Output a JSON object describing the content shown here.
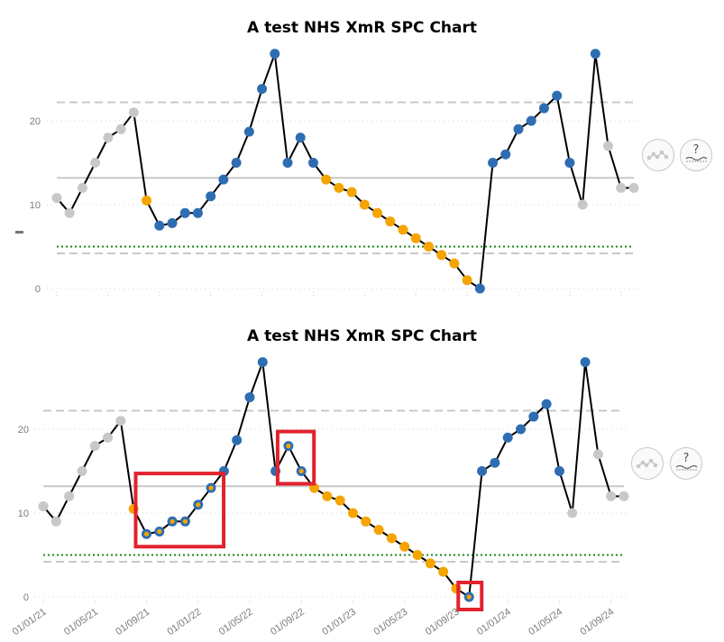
{
  "chart_data": [
    {
      "type": "line",
      "title": "A test NHS XmR SPC Chart",
      "ylim": [
        0,
        30
      ],
      "y_ticks": [
        0,
        10,
        20
      ],
      "x": [
        "01/01/21",
        "01/02/21",
        "01/03/21",
        "01/04/21",
        "01/05/21",
        "01/06/21",
        "01/07/21",
        "01/08/21",
        "01/09/21",
        "01/10/21",
        "01/11/21",
        "01/12/21",
        "01/01/22",
        "01/02/22",
        "01/03/22",
        "01/04/22",
        "01/05/22",
        "01/06/22",
        "01/07/22",
        "01/08/22",
        "01/09/22",
        "01/10/22",
        "01/11/22",
        "01/12/22",
        "01/01/23",
        "01/02/23",
        "01/03/23",
        "01/04/23",
        "01/05/23",
        "01/06/23",
        "01/07/23",
        "01/08/23",
        "01/09/23",
        "01/10/23",
        "01/11/23",
        "01/12/23",
        "01/01/24",
        "01/02/24",
        "01/03/24",
        "01/04/24",
        "01/05/24",
        "01/06/24",
        "01/07/24",
        "01/08/24",
        "01/09/24",
        "01/10/24"
      ],
      "x_tick_labels_visible": false,
      "values": [
        10.8,
        9,
        12,
        15,
        18,
        19,
        21,
        10.5,
        7.5,
        7.8,
        9,
        9,
        11,
        13,
        15,
        18.7,
        23.8,
        28,
        15,
        18,
        15,
        13,
        12,
        11.5,
        10,
        9,
        8,
        7,
        6,
        5,
        4,
        3,
        1,
        0,
        15,
        16,
        19,
        20,
        21.5,
        23,
        15,
        10,
        28,
        17,
        12,
        12
      ],
      "point_colors": [
        "grey",
        "grey",
        "grey",
        "grey",
        "grey",
        "grey",
        "grey",
        "orange",
        "blue",
        "blue",
        "blue",
        "blue",
        "blue",
        "blue",
        "blue",
        "blue",
        "blue",
        "blue",
        "blue",
        "blue",
        "blue",
        "orange",
        "orange",
        "orange",
        "orange",
        "orange",
        "orange",
        "orange",
        "orange",
        "orange",
        "orange",
        "orange",
        "orange",
        "blue",
        "blue",
        "blue",
        "blue",
        "blue",
        "blue",
        "blue",
        "blue",
        "grey",
        "blue",
        "grey",
        "grey",
        "grey"
      ],
      "reference_lines": {
        "mean": 13.2,
        "upper_process_limit": 22.2,
        "lower_process_limit": 4.2,
        "target": 5
      },
      "grid": true,
      "legend": "none"
    },
    {
      "type": "line",
      "title": "A test NHS XmR SPC Chart",
      "ylim": [
        0,
        30
      ],
      "y_ticks": [
        0,
        10,
        20
      ],
      "x": [
        "01/01/21",
        "01/02/21",
        "01/03/21",
        "01/04/21",
        "01/05/21",
        "01/06/21",
        "01/07/21",
        "01/08/21",
        "01/09/21",
        "01/10/21",
        "01/11/21",
        "01/12/21",
        "01/01/22",
        "01/02/22",
        "01/03/22",
        "01/04/22",
        "01/05/22",
        "01/06/22",
        "01/07/22",
        "01/08/22",
        "01/09/22",
        "01/10/22",
        "01/11/22",
        "01/12/22",
        "01/01/23",
        "01/02/23",
        "01/03/23",
        "01/04/23",
        "01/05/23",
        "01/06/23",
        "01/07/23",
        "01/08/23",
        "01/09/23",
        "01/10/23",
        "01/11/23",
        "01/12/23",
        "01/01/24",
        "01/02/24",
        "01/03/24",
        "01/04/24",
        "01/05/24",
        "01/06/24",
        "01/07/24",
        "01/08/24",
        "01/09/24",
        "01/10/24"
      ],
      "x_tick_labels": [
        "01/01/21",
        "01/05/21",
        "01/09/21",
        "01/01/22",
        "01/05/22",
        "01/09/22",
        "01/01/23",
        "01/05/23",
        "01/09/23",
        "01/01/24",
        "01/05/24",
        "01/09/24"
      ],
      "values": [
        10.8,
        9,
        12,
        15,
        18,
        19,
        21,
        10.5,
        7.5,
        7.8,
        9,
        9,
        11,
        13,
        15,
        18.7,
        23.8,
        28,
        15,
        18,
        15,
        13,
        12,
        11.5,
        10,
        9,
        8,
        7,
        6,
        5,
        4,
        3,
        1,
        0,
        15,
        16,
        19,
        20,
        21.5,
        23,
        15,
        10,
        28,
        17,
        12,
        12
      ],
      "point_colors": [
        "grey",
        "grey",
        "grey",
        "grey",
        "grey",
        "grey",
        "grey",
        "orange",
        "blue",
        "blue",
        "blue",
        "blue",
        "blue",
        "blue",
        "blue",
        "blue",
        "blue",
        "blue",
        "blue",
        "blue",
        "blue",
        "orange",
        "orange",
        "orange",
        "orange",
        "orange",
        "orange",
        "orange",
        "orange",
        "orange",
        "orange",
        "orange",
        "orange",
        "blue",
        "blue",
        "blue",
        "blue",
        "blue",
        "blue",
        "blue",
        "blue",
        "grey",
        "blue",
        "grey",
        "grey",
        "grey"
      ],
      "outlined_points": [
        8,
        9,
        10,
        11,
        12,
        13,
        19,
        20,
        33
      ],
      "highlight_boxes": [
        [
          8,
          13
        ],
        [
          19,
          20
        ],
        [
          33,
          33
        ]
      ],
      "reference_lines": {
        "mean": 13.2,
        "upper_process_limit": 22.2,
        "lower_process_limit": 4.2,
        "target": 5
      },
      "grid": true,
      "legend": "none"
    }
  ],
  "colors": {
    "grey_point": "#c8c8c8",
    "orange_point": "#f5a400",
    "blue_point": "#2f6db3",
    "line": "#000000",
    "mean_line": "#c8c8c8",
    "limit_line": "#c8c8c8",
    "target_line": "#1a8a1a",
    "highlight_box": "#e2222e",
    "tick_label": "#7a7a7a"
  },
  "icons": {
    "variation": "variation-icon",
    "assurance": "assurance-icon"
  }
}
